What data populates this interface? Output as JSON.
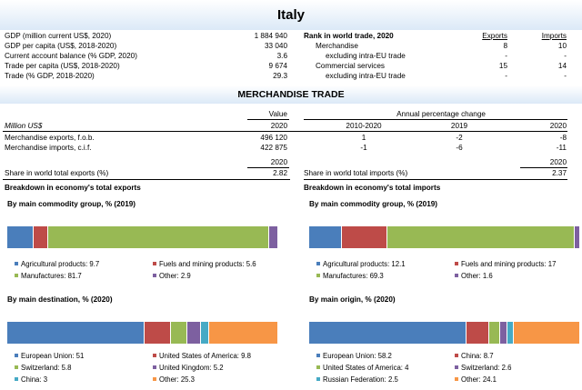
{
  "country": "Italy",
  "indicators": [
    {
      "label": "GDP (million current US$, 2020)",
      "value": "1 884 940"
    },
    {
      "label": "GDP per capita (US$, 2018-2020)",
      "value": "33 040"
    },
    {
      "label": "Current account balance (% GDP, 2020)",
      "value": "3.6"
    },
    {
      "label": "Trade per capita (US$, 2018-2020)",
      "value": "9 674"
    },
    {
      "label": "Trade (% GDP, 2018-2020)",
      "value": "29.3"
    }
  ],
  "rank": {
    "title": "Rank in world trade, 2020",
    "exports_header": "Exports",
    "imports_header": "Imports",
    "rows": [
      {
        "label": "Merchandise",
        "exports": "8",
        "imports": "10"
      },
      {
        "label": "excluding intra-EU trade",
        "exports": "-",
        "imports": "-"
      },
      {
        "label": "Commercial services",
        "exports": "15",
        "imports": "14"
      },
      {
        "label": "excluding intra-EU trade",
        "exports": "-",
        "imports": "-"
      }
    ]
  },
  "merch": {
    "title": "MERCHANDISE TRADE",
    "value_header": "Value",
    "annual_header": "Annual percentage change",
    "unit": "Million US$",
    "col_year": "2020",
    "col_period": "2010-2020",
    "col_2019": "2019",
    "col_2020": "2020",
    "rows": [
      {
        "label": "Merchandise exports, f.o.b.",
        "value": "496 120",
        "p1": "1",
        "p2": "-2",
        "p3": "-8"
      },
      {
        "label": "Merchandise imports, c.i.f.",
        "value": "422 875",
        "p1": "-1",
        "p2": "-6",
        "p3": "-11"
      }
    ],
    "share_year": "2020",
    "share_exports_label": "Share in world total exports (%)",
    "share_exports_value": "2.82",
    "share_imports_label": "Share in world total imports (%)",
    "share_imports_value": "2.37"
  },
  "exports_breakdown": {
    "title": "Breakdown in economy's total exports",
    "commodity": {
      "title": "By main commodity group, % (2019)",
      "items": [
        {
          "label": "Agricultural products: 9.7",
          "value": 9.7,
          "color": "#4a7ebb"
        },
        {
          "label": "Fuels and mining products: 5.6",
          "value": 5.6,
          "color": "#be4b48"
        },
        {
          "label": "Manufactures: 81.7",
          "value": 81.7,
          "color": "#98b954"
        },
        {
          "label": "Other: 2.9",
          "value": 2.9,
          "color": "#7d60a0"
        }
      ]
    },
    "destination": {
      "title": "By main destination, % (2020)",
      "items": [
        {
          "label": "European Union: 51",
          "value": 51,
          "color": "#4a7ebb"
        },
        {
          "label": "United States of America: 9.8",
          "value": 9.8,
          "color": "#be4b48"
        },
        {
          "label": "Switzerland: 5.8",
          "value": 5.8,
          "color": "#98b954"
        },
        {
          "label": "United Kingdom: 5.2",
          "value": 5.2,
          "color": "#7d60a0"
        },
        {
          "label": "China: 3",
          "value": 3,
          "color": "#46aac5"
        },
        {
          "label": "Other: 25.3",
          "value": 25.3,
          "color": "#f79646"
        }
      ]
    }
  },
  "imports_breakdown": {
    "title": "Breakdown in economy's total imports",
    "commodity": {
      "title": "By main commodity group, % (2019)",
      "items": [
        {
          "label": "Agricultural products: 12.1",
          "value": 12.1,
          "color": "#4a7ebb"
        },
        {
          "label": "Fuels and mining products: 17",
          "value": 17,
          "color": "#be4b48"
        },
        {
          "label": "Manufactures: 69.3",
          "value": 69.3,
          "color": "#98b954"
        },
        {
          "label": "Other: 1.6",
          "value": 1.6,
          "color": "#7d60a0"
        }
      ]
    },
    "origin": {
      "title": "By main origin, % (2020)",
      "items": [
        {
          "label": "European Union: 58.2",
          "value": 58.2,
          "color": "#4a7ebb"
        },
        {
          "label": "China: 8.7",
          "value": 8.7,
          "color": "#be4b48"
        },
        {
          "label": "United States of America: 4",
          "value": 4,
          "color": "#98b954"
        },
        {
          "label": "Switzerland: 2.6",
          "value": 2.6,
          "color": "#7d60a0"
        },
        {
          "label": "Russian Federation: 2.5",
          "value": 2.5,
          "color": "#46aac5"
        },
        {
          "label": "Other: 24.1",
          "value": 24.1,
          "color": "#f79646"
        }
      ]
    }
  }
}
